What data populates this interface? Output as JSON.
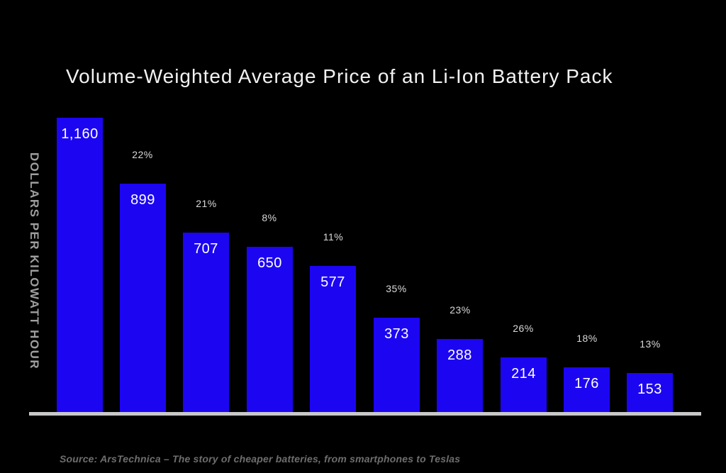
{
  "chart_data": {
    "type": "bar",
    "title": "Volume-Weighted Average Price of an Li-Ion Battery Pack",
    "ylabel": "DOLLARS PER KILOWATT HOUR",
    "source": "Source: ArsTechnica – The story of cheaper batteries, from smartphones to Teslas",
    "values": [
      1160,
      899,
      707,
      650,
      577,
      373,
      288,
      214,
      176,
      153
    ],
    "value_labels": [
      "1,160",
      "899",
      "707",
      "650",
      "577",
      "373",
      "288",
      "214",
      "176",
      "153"
    ],
    "pct_change_labels": [
      "",
      "22%",
      "21%",
      "8%",
      "11%",
      "35%",
      "23%",
      "26%",
      "18%",
      "13%"
    ],
    "ylim": [
      0,
      1160
    ],
    "grid": "off",
    "legend": "none",
    "colors": {
      "background": "#000000",
      "bar": "#1c06f2",
      "value_label": "#ffffff",
      "pct_label": "#d9d9d9",
      "title": "#f2f2f2",
      "ylabel": "#9e9e9e",
      "baseline": "#c8c8c8",
      "source": "#6e6e6e"
    }
  }
}
